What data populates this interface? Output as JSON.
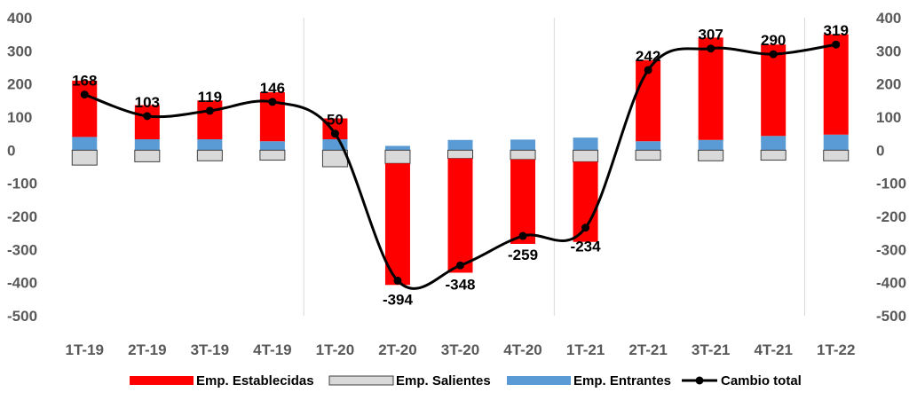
{
  "chart_data": {
    "type": "bar",
    "categories": [
      "1T-19",
      "2T-19",
      "3T-19",
      "4T-19",
      "1T-20",
      "2T-20",
      "3T-20",
      "4T-20",
      "1T-21",
      "2T-21",
      "3T-21",
      "4T-21",
      "1T-22"
    ],
    "series": [
      {
        "name": "Emp. Establecidas",
        "kind": "bar-stack",
        "color": "#ff0000",
        "values": [
          170,
          103,
          117,
          148,
          63,
          -367,
          -345,
          -255,
          -242,
          245,
          309,
          276,
          303
        ]
      },
      {
        "name": "Emp. Salientes",
        "kind": "bar-stack",
        "color": "#d9d9d9",
        "values": [
          -45,
          -35,
          -32,
          -30,
          -50,
          -40,
          -25,
          -28,
          -35,
          -30,
          -32,
          -30,
          -32
        ]
      },
      {
        "name": "Emp. Entrantes",
        "kind": "bar-stack",
        "color": "#5b9bd5",
        "values": [
          40,
          33,
          33,
          27,
          33,
          13,
          31,
          32,
          38,
          27,
          31,
          43,
          47
        ]
      },
      {
        "name": "Cambio total",
        "kind": "line",
        "color": "#000000",
        "values": [
          168,
          103,
          119,
          146,
          50,
          -394,
          -348,
          -259,
          -234,
          242,
          307,
          290,
          319
        ]
      }
    ],
    "data_labels": [
      "168",
      "103",
      "119",
      "146",
      "50",
      "-394",
      "-348",
      "-259",
      "-234",
      "242",
      "307",
      "290",
      "319"
    ],
    "yticks": [
      "400",
      "300",
      "200",
      "100",
      "0",
      "-100",
      "-200",
      "-300",
      "-400",
      "-500"
    ],
    "ylim": [
      -500,
      400
    ],
    "ytick_step": 100,
    "year_separators_after": [
      "4T-19",
      "4T-20",
      "4T-21"
    ],
    "legend_position": "bottom",
    "title": "",
    "xlabel": "",
    "ylabel": ""
  }
}
